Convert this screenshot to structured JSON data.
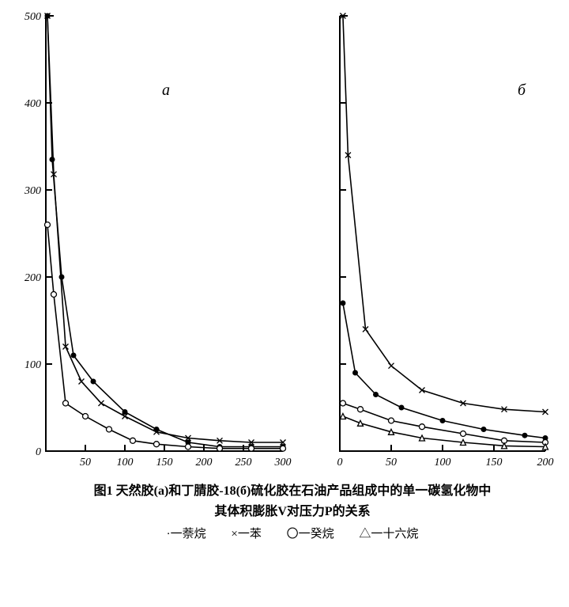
{
  "figure": {
    "caption_line1": "图1 天然胶(a)和丁腈胶-18(б)硫化胶在石油产品组成中的单一碳氢化物中",
    "caption_line2": "其体积膨胀V对压力P的关系",
    "legend": {
      "dot": "·一萘烷",
      "x": "×一苯",
      "circle": "〇一癸烷",
      "triangle": "△一十六烷"
    }
  },
  "panelA": {
    "label": "a",
    "type": "line",
    "xlim": [
      0,
      300
    ],
    "ylim": [
      0,
      500
    ],
    "xtick_step": 50,
    "ytick_step": 100,
    "xticks": [
      50,
      100,
      150,
      200,
      250,
      300
    ],
    "yticks": [
      0,
      100,
      200,
      300,
      400,
      500
    ],
    "background_color": "#ffffff",
    "axis_color": "#000000",
    "line_color": "#000000",
    "line_width": 1.6,
    "series": {
      "naphthane": {
        "marker": "dot",
        "marker_color": "#000000",
        "points": [
          [
            2,
            500
          ],
          [
            8,
            335
          ],
          [
            20,
            200
          ],
          [
            35,
            110
          ],
          [
            60,
            80
          ],
          [
            100,
            45
          ],
          [
            140,
            25
          ],
          [
            180,
            10
          ],
          [
            220,
            5
          ],
          [
            260,
            5
          ],
          [
            300,
            5
          ]
        ]
      },
      "benzene": {
        "marker": "x",
        "marker_color": "#000000",
        "points": [
          [
            2,
            500
          ],
          [
            10,
            318
          ],
          [
            25,
            120
          ],
          [
            45,
            80
          ],
          [
            70,
            55
          ],
          [
            100,
            40
          ],
          [
            140,
            22
          ],
          [
            180,
            15
          ],
          [
            220,
            12
          ],
          [
            260,
            10
          ],
          [
            300,
            10
          ]
        ]
      },
      "decane": {
        "marker": "circle",
        "marker_color": "#000000",
        "points": [
          [
            2,
            260
          ],
          [
            10,
            180
          ],
          [
            25,
            55
          ],
          [
            50,
            40
          ],
          [
            80,
            25
          ],
          [
            110,
            12
          ],
          [
            140,
            8
          ],
          [
            180,
            5
          ],
          [
            220,
            3
          ],
          [
            260,
            3
          ],
          [
            300,
            3
          ]
        ]
      }
    }
  },
  "panelB": {
    "label": "б",
    "type": "line",
    "xlim": [
      0,
      200
    ],
    "ylim": [
      0,
      500
    ],
    "xtick_step": 50,
    "ytick_step": 100,
    "xticks": [
      0,
      50,
      100,
      150,
      200
    ],
    "yticks": [
      100,
      200,
      300,
      400,
      500
    ],
    "background_color": "#ffffff",
    "axis_color": "#000000",
    "line_color": "#000000",
    "line_width": 1.6,
    "series": {
      "benzene": {
        "marker": "x",
        "marker_color": "#000000",
        "points": [
          [
            3,
            500
          ],
          [
            8,
            340
          ],
          [
            25,
            140
          ],
          [
            50,
            98
          ],
          [
            80,
            70
          ],
          [
            120,
            55
          ],
          [
            160,
            48
          ],
          [
            200,
            45
          ]
        ]
      },
      "naphthane": {
        "marker": "dot",
        "marker_color": "#000000",
        "points": [
          [
            3,
            170
          ],
          [
            15,
            90
          ],
          [
            35,
            65
          ],
          [
            60,
            50
          ],
          [
            100,
            35
          ],
          [
            140,
            25
          ],
          [
            180,
            18
          ],
          [
            200,
            15
          ]
        ]
      },
      "decane": {
        "marker": "circle",
        "marker_color": "#000000",
        "points": [
          [
            3,
            55
          ],
          [
            20,
            48
          ],
          [
            50,
            35
          ],
          [
            80,
            28
          ],
          [
            120,
            20
          ],
          [
            160,
            12
          ],
          [
            200,
            10
          ]
        ]
      },
      "hexadecane": {
        "marker": "triangle",
        "marker_color": "#000000",
        "points": [
          [
            3,
            40
          ],
          [
            20,
            32
          ],
          [
            50,
            22
          ],
          [
            80,
            15
          ],
          [
            120,
            10
          ],
          [
            160,
            6
          ],
          [
            200,
            5
          ]
        ]
      }
    }
  }
}
